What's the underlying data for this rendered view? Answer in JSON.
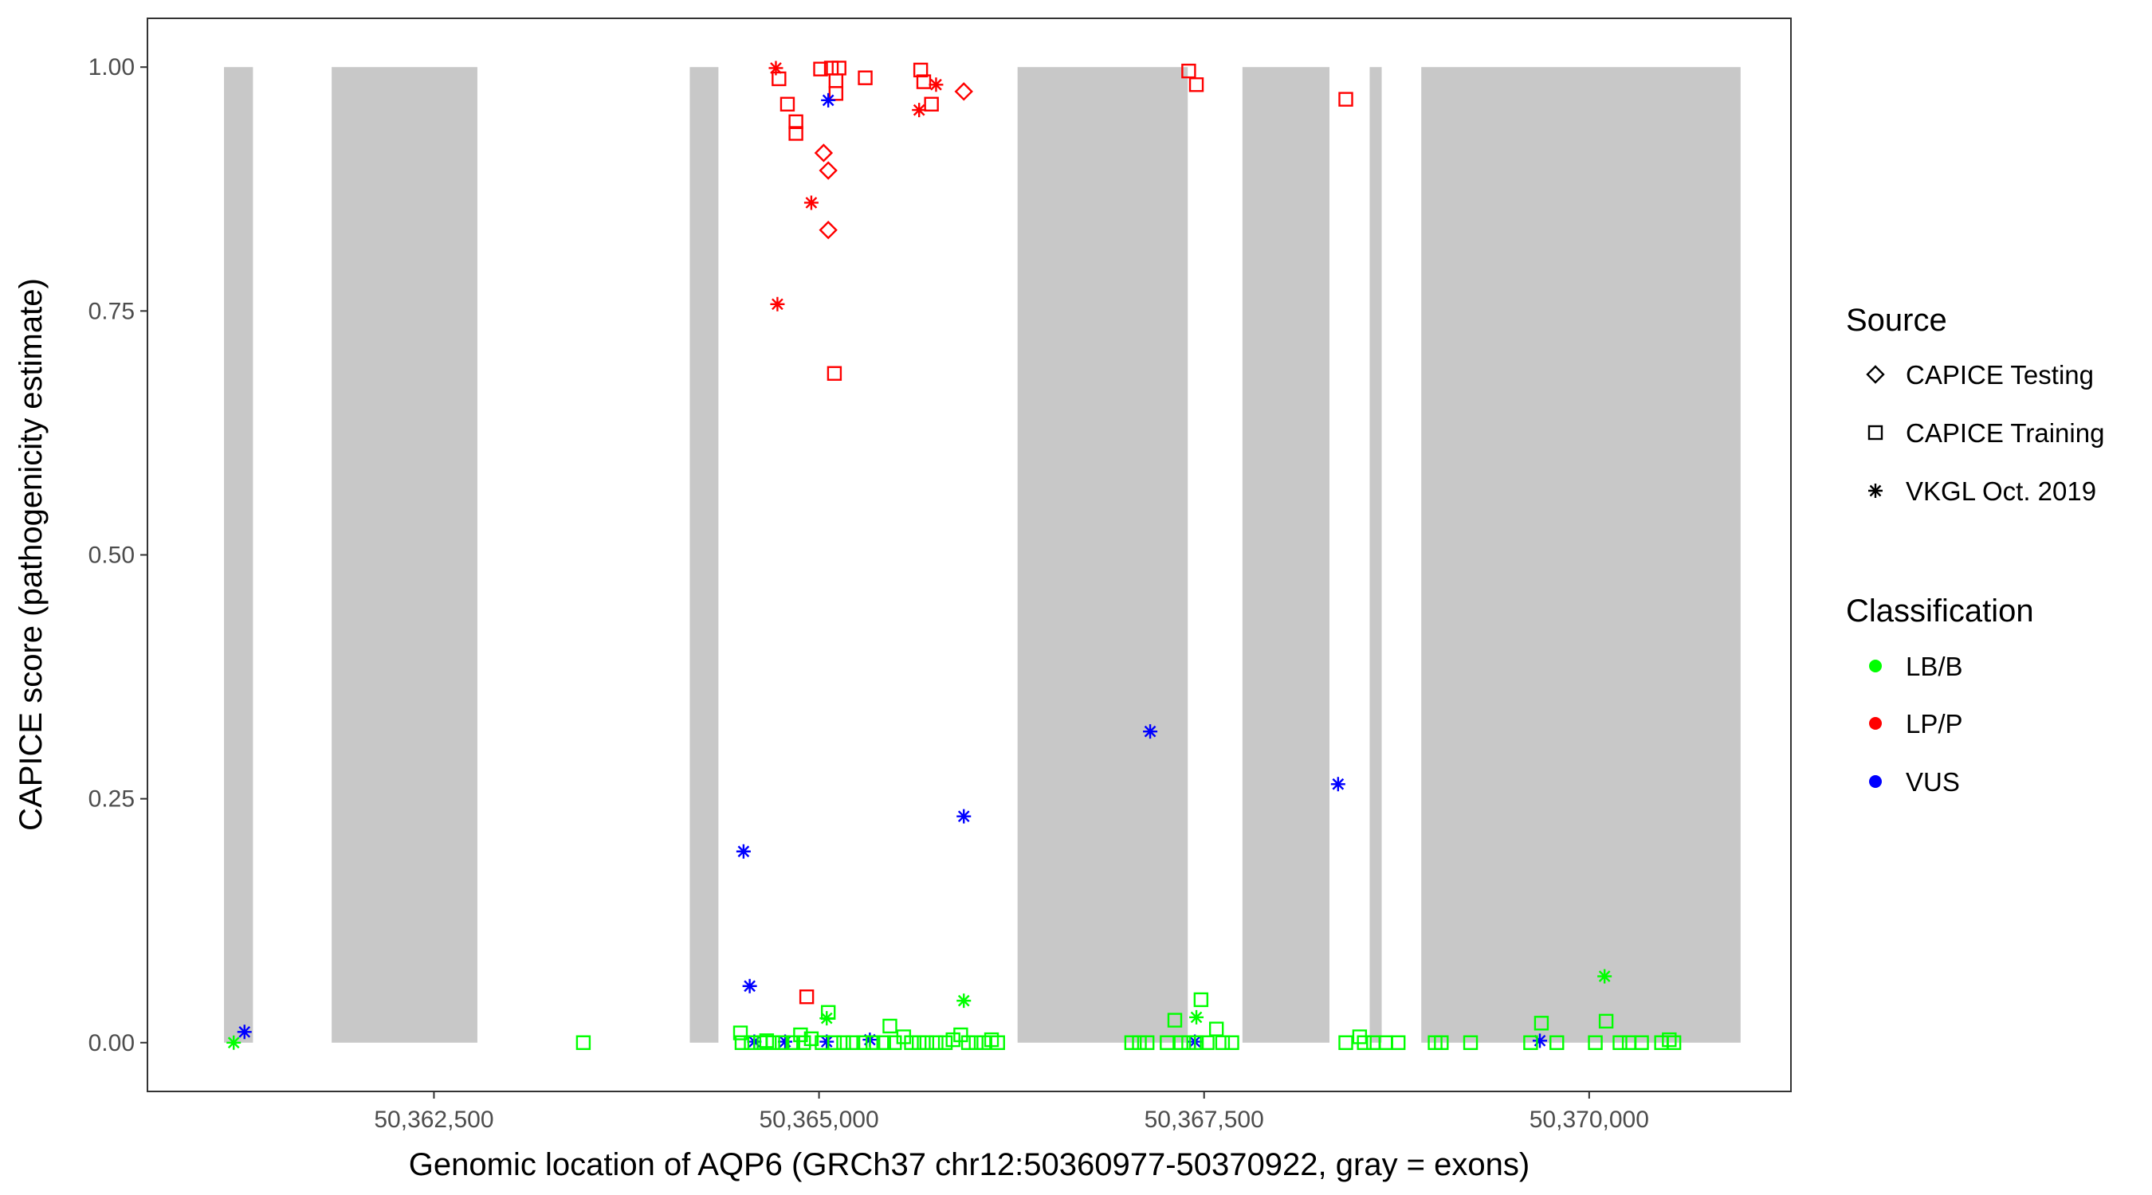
{
  "chart_data": {
    "type": "scatter",
    "xlabel": "Genomic location of AQP6 (GRCh37 chr12:50360977-50370922, gray = exons)",
    "ylabel": "CAPICE score (pathogenicity estimate)",
    "xlim": [
      50360640,
      50371310
    ],
    "ylim": [
      -0.05,
      1.05
    ],
    "x_ticks": [
      50362500,
      50365000,
      50367500,
      50370000
    ],
    "x_tick_labels": [
      "50,362,500",
      "50,365,000",
      "50,367,500",
      "50,370,000"
    ],
    "y_ticks": [
      0,
      0.25,
      0.5,
      0.75,
      1
    ],
    "y_tick_labels": [
      "0.00",
      "0.25",
      "0.50",
      "0.75",
      "1.00"
    ],
    "grid": false,
    "legend_position": "right",
    "exon_fill": "#c8c8c8",
    "exons": [
      [
        50361137,
        50361325
      ],
      [
        50361836,
        50362782
      ],
      [
        50364161,
        50364347
      ],
      [
        50366289,
        50367394
      ],
      [
        50367749,
        50368314
      ],
      [
        50368575,
        50368653
      ],
      [
        50368910,
        50370983
      ]
    ],
    "legend": {
      "shape_title": "Source",
      "shapes": [
        {
          "key": "diamond",
          "label": "CAPICE Testing"
        },
        {
          "key": "square",
          "label": "CAPICE Training"
        },
        {
          "key": "asterisk",
          "label": "VKGL Oct. 2019"
        }
      ],
      "color_title": "Classification",
      "colors": [
        {
          "key": "LB",
          "label": "LB/B",
          "color": "#00ff00"
        },
        {
          "key": "LP",
          "label": "LP/P",
          "color": "#ff0000"
        },
        {
          "key": "VUS",
          "label": "VUS",
          "color": "#0000ff"
        }
      ]
    },
    "series": [
      {
        "name": "LP/P",
        "key": "LP",
        "shape": "square",
        "points": [
          [
            50364740,
            0.988
          ],
          [
            50364795,
            0.962
          ],
          [
            50364850,
            0.944
          ],
          [
            50364850,
            0.932
          ],
          [
            50365010,
            0.998
          ],
          [
            50365080,
            0.999
          ],
          [
            50365130,
            0.999
          ],
          [
            50365110,
            0.986
          ],
          [
            50365110,
            0.973
          ],
          [
            50365300,
            0.989
          ],
          [
            50365660,
            0.997
          ],
          [
            50365680,
            0.985
          ],
          [
            50365730,
            0.962
          ],
          [
            50367400,
            0.996
          ],
          [
            50367450,
            0.982
          ],
          [
            50368420,
            0.967
          ],
          [
            50365100,
            0.686
          ],
          [
            50364920,
            0.047
          ]
        ]
      },
      {
        "name": "LP/P",
        "key": "LP",
        "shape": "diamond",
        "points": [
          [
            50365030,
            0.912
          ],
          [
            50365060,
            0.894
          ],
          [
            50365060,
            0.833
          ],
          [
            50365940,
            0.975
          ]
        ]
      },
      {
        "name": "LP/P",
        "key": "LP",
        "shape": "asterisk",
        "points": [
          [
            50364720,
            0.999
          ],
          [
            50364950,
            0.861
          ],
          [
            50364730,
            0.757
          ],
          [
            50365650,
            0.956
          ],
          [
            50365760,
            0.982
          ]
        ]
      },
      {
        "name": "VUS",
        "key": "VUS",
        "shape": "asterisk",
        "points": [
          [
            50361270,
            0.011
          ],
          [
            50364510,
            0.196
          ],
          [
            50364550,
            0.058
          ],
          [
            50365940,
            0.232
          ],
          [
            50367150,
            0.319
          ],
          [
            50368370,
            0.265
          ],
          [
            50365060,
            0.966
          ],
          [
            50364580,
            0.001
          ],
          [
            50364780,
            0.001
          ],
          [
            50365050,
            0.001
          ],
          [
            50365330,
            0.003
          ],
          [
            50367440,
            0.001
          ],
          [
            50369680,
            0.002
          ]
        ]
      },
      {
        "name": "LB/B",
        "key": "LB",
        "shape": "square",
        "points": [
          [
            50363470,
            0.0
          ],
          [
            50364490,
            0.01
          ],
          [
            50364500,
            0.0
          ],
          [
            50364560,
            0.0
          ],
          [
            50364620,
            0.0
          ],
          [
            50364660,
            0.002
          ],
          [
            50364700,
            0.0
          ],
          [
            50364760,
            0.0
          ],
          [
            50364830,
            0.0
          ],
          [
            50364880,
            0.008
          ],
          [
            50364900,
            0.0
          ],
          [
            50364950,
            0.004
          ],
          [
            50365020,
            0.0
          ],
          [
            50365060,
            0.031
          ],
          [
            50365100,
            0.0
          ],
          [
            50365160,
            0.0
          ],
          [
            50365220,
            0.0
          ],
          [
            50365290,
            0.0
          ],
          [
            50365350,
            0.0
          ],
          [
            50365420,
            0.0
          ],
          [
            50365460,
            0.017
          ],
          [
            50365490,
            0.0
          ],
          [
            50365550,
            0.006
          ],
          [
            50365600,
            0.0
          ],
          [
            50365650,
            0.0
          ],
          [
            50365700,
            0.0
          ],
          [
            50365760,
            0.0
          ],
          [
            50365820,
            0.0
          ],
          [
            50365870,
            0.003
          ],
          [
            50365920,
            0.008
          ],
          [
            50365970,
            0.0
          ],
          [
            50366020,
            0.0
          ],
          [
            50366070,
            0.0
          ],
          [
            50366120,
            0.003
          ],
          [
            50366160,
            0.0
          ],
          [
            50367030,
            0.0
          ],
          [
            50367080,
            0.0
          ],
          [
            50367130,
            0.0
          ],
          [
            50367260,
            0.0
          ],
          [
            50367310,
            0.023
          ],
          [
            50367350,
            0.0
          ],
          [
            50367400,
            0.0
          ],
          [
            50367450,
            0.0
          ],
          [
            50367480,
            0.044
          ],
          [
            50367520,
            0.0
          ],
          [
            50367580,
            0.014
          ],
          [
            50367620,
            0.0
          ],
          [
            50367680,
            0.0
          ],
          [
            50368420,
            0.0
          ],
          [
            50368510,
            0.006
          ],
          [
            50368540,
            0.0
          ],
          [
            50368600,
            0.0
          ],
          [
            50368680,
            0.0
          ],
          [
            50368760,
            0.0
          ],
          [
            50369000,
            0.0
          ],
          [
            50369040,
            0.0
          ],
          [
            50369230,
            0.0
          ],
          [
            50369620,
            0.0
          ],
          [
            50369690,
            0.02
          ],
          [
            50369790,
            0.0
          ],
          [
            50370040,
            0.0
          ],
          [
            50370110,
            0.022
          ],
          [
            50370200,
            0.0
          ],
          [
            50370260,
            0.0
          ],
          [
            50370340,
            0.0
          ],
          [
            50370470,
            0.0
          ],
          [
            50370520,
            0.003
          ],
          [
            50370550,
            0.0
          ]
        ]
      },
      {
        "name": "LB/B",
        "key": "LB",
        "shape": "asterisk",
        "points": [
          [
            50361200,
            0.0
          ],
          [
            50365050,
            0.025
          ],
          [
            50365940,
            0.043
          ],
          [
            50367450,
            0.026
          ],
          [
            50370100,
            0.068
          ]
        ]
      }
    ]
  }
}
